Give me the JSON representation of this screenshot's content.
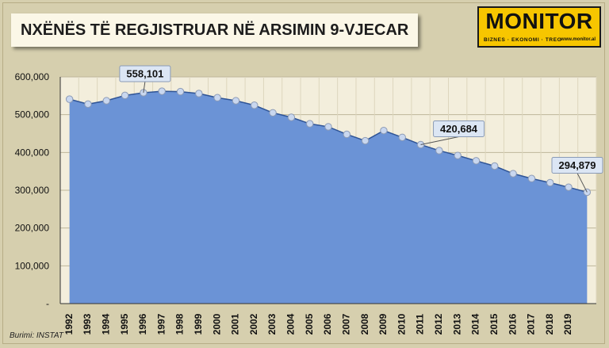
{
  "header": {
    "title": "NXËNËS TË REGJISTRUAR NË ARSIMIN 9-VJECAR"
  },
  "logo": {
    "wordmark": "MONITOR",
    "tagline": "BIZNES · EKONOMI · TREG",
    "url": "www.monitor.al",
    "color": "#f7c600"
  },
  "source": "Burimi: INSTAT",
  "chart_data": {
    "type": "area",
    "title": "NXËNËS TË REGJISTRUAR NË ARSIMIN 9-VJECAR",
    "xlabel": "",
    "ylabel": "",
    "ylim": [
      0,
      600000
    ],
    "yticks": [
      0,
      100000,
      200000,
      300000,
      400000,
      500000,
      600000
    ],
    "ytick_labels": [
      "-",
      "100,000",
      "200,000",
      "300,000",
      "400,000",
      "500,000",
      "600,000"
    ],
    "grid": true,
    "legend": "none",
    "x": [
      1992,
      1993,
      1994,
      1995,
      1996,
      1997,
      1998,
      1999,
      2000,
      2001,
      2002,
      2003,
      2004,
      2005,
      2006,
      2007,
      2008,
      2009,
      2010,
      2011,
      2012,
      2013,
      2014,
      2015,
      2016,
      2017,
      2018,
      2019,
      2020
    ],
    "xtick_labels": [
      "1992",
      "1993",
      "1994",
      "1995",
      "1996",
      "1997",
      "1998",
      "1999",
      "2000",
      "2001",
      "2002",
      "2003",
      "2004",
      "2005",
      "2006",
      "2007",
      "2008",
      "2009",
      "2010",
      "2011",
      "2012",
      "2013",
      "2014",
      "2015",
      "2016",
      "2017",
      "2018",
      "2019"
    ],
    "series": [
      {
        "values": [
          541000,
          528000,
          537000,
          551000,
          558101,
          562000,
          561000,
          556000,
          545000,
          537000,
          525000,
          505000,
          493000,
          476000,
          468000,
          448000,
          431000,
          458000,
          440000,
          420684,
          405000,
          392000,
          378000,
          364000,
          344000,
          331000,
          320000,
          308000,
          294879
        ],
        "fill_color": "#6b93d6",
        "line_color": "#2f5496",
        "marker_color": "#c9d7ef"
      }
    ],
    "annotations": [
      {
        "x": 1996,
        "text": "558,101"
      },
      {
        "x": 2011,
        "text": "420,684"
      },
      {
        "x": 2020,
        "text": "294,879"
      }
    ]
  }
}
